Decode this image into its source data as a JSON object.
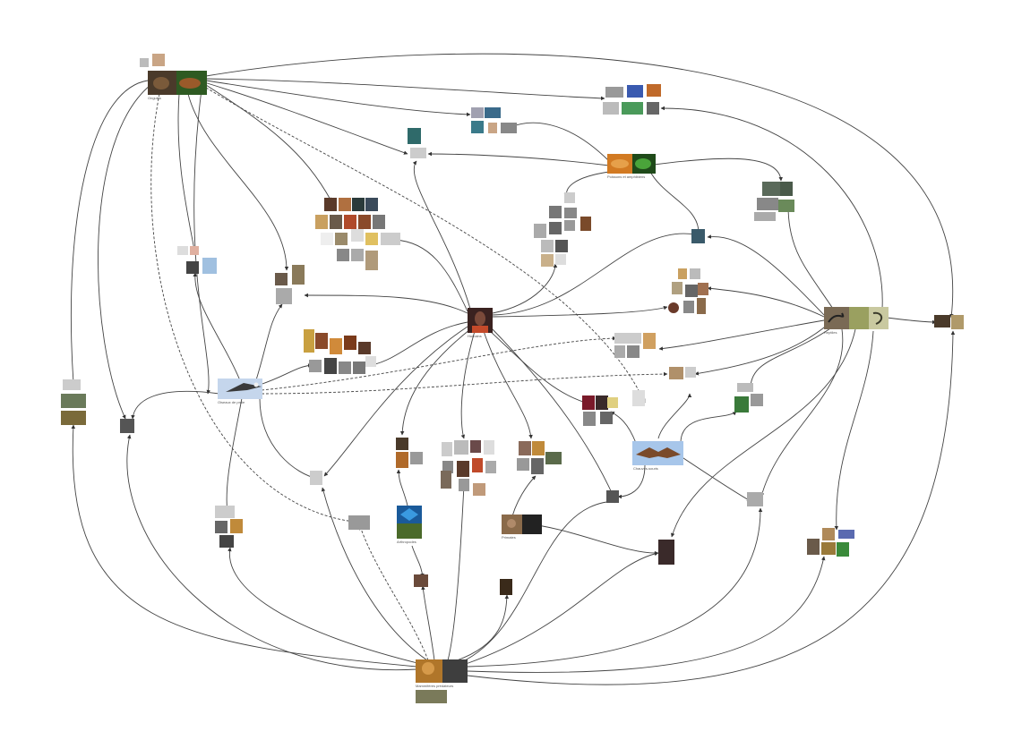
{
  "nodes": {
    "human": {
      "label": "Humains",
      "colors": [
        "#5b2f26",
        "#2b1b18"
      ]
    },
    "cattle": {
      "label": "Ongulés",
      "colors": [
        "#6d4a2b",
        "#8e5a2e",
        "#3a5e2a"
      ]
    },
    "fish": {
      "label": "Poissons et amphibiens",
      "colors": [
        "#c46a18",
        "#2c8a2f"
      ]
    },
    "reptile": {
      "label": "Reptiles",
      "colors": [
        "#6b5a45",
        "#8a9a5a",
        "#9aa04a"
      ]
    },
    "bird": {
      "label": "Oiseaux de proie",
      "colors": [
        "#b7cbe5",
        "#5a5a5a"
      ]
    },
    "bat": {
      "label": "Chauves-souris",
      "colors": [
        "#a9c7ea",
        "#7a4a2a"
      ]
    },
    "carnivore": {
      "label": "Mammifères prédateurs",
      "colors": [
        "#b0762a",
        "#3f3f3f"
      ]
    },
    "insect": {
      "label": "Arthropodes",
      "colors": [
        "#1f6fb0",
        "#3a6a2a"
      ]
    },
    "primate": {
      "label": "Primates",
      "colors": [
        "#8a6a4a",
        "#222222"
      ]
    }
  }
}
